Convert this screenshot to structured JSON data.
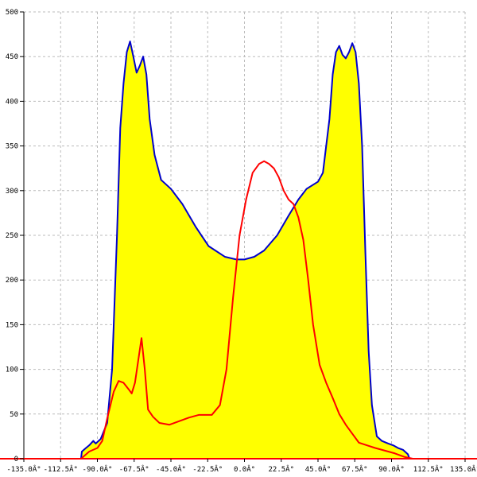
{
  "chart_data": {
    "type": "area",
    "title": "",
    "xlabel": "",
    "ylabel": "",
    "xlim": [
      -135,
      135
    ],
    "ylim": [
      0,
      500
    ],
    "grid": true,
    "legend": "none",
    "x_tick_labels": [
      "-135.0Â°",
      "-112.5Â°",
      "-90.0Â°",
      "-67.5Â°",
      "-45.0Â°",
      "-22.5Â°",
      "0.0Â°",
      "22.5Â°",
      "45.0Â°",
      "67.5Â°",
      "90.0Â°",
      "112.5Â°",
      "135.0Â°"
    ],
    "x_tick_values": [
      -135,
      -112.5,
      -90,
      -67.5,
      -45,
      -22.5,
      0,
      22.5,
      45,
      67.5,
      90,
      112.5,
      135
    ],
    "y_tick_values": [
      0,
      50,
      100,
      150,
      200,
      250,
      300,
      350,
      400,
      450,
      500
    ],
    "y_tick_labels": [
      "0",
      "50",
      "100",
      "150",
      "200",
      "250",
      "300",
      "350",
      "400",
      "450",
      "500"
    ],
    "series": [
      {
        "kind": "area",
        "color": "#0000cc",
        "fill": "#ffff00",
        "points": [
          [
            -100,
            0
          ],
          [
            -99.5,
            8
          ],
          [
            -97,
            12
          ],
          [
            -95,
            15
          ],
          [
            -92.5,
            20
          ],
          [
            -91,
            17
          ],
          [
            -88,
            22
          ],
          [
            -84,
            40
          ],
          [
            -81,
            100
          ],
          [
            -78,
            250
          ],
          [
            -76,
            370
          ],
          [
            -74,
            420
          ],
          [
            -72,
            455
          ],
          [
            -70,
            467
          ],
          [
            -68,
            450
          ],
          [
            -66,
            432
          ],
          [
            -64,
            440
          ],
          [
            -62,
            450
          ],
          [
            -60,
            430
          ],
          [
            -58,
            380
          ],
          [
            -55,
            340
          ],
          [
            -51,
            312
          ],
          [
            -45,
            302
          ],
          [
            -38,
            285
          ],
          [
            -30,
            260
          ],
          [
            -22,
            238
          ],
          [
            -12,
            226
          ],
          [
            -5,
            223
          ],
          [
            0,
            223
          ],
          [
            6,
            226
          ],
          [
            12,
            233
          ],
          [
            20,
            250
          ],
          [
            27,
            272
          ],
          [
            33,
            290
          ],
          [
            38,
            302
          ],
          [
            45,
            310
          ],
          [
            48,
            320
          ],
          [
            52,
            380
          ],
          [
            54,
            430
          ],
          [
            56,
            455
          ],
          [
            58,
            462
          ],
          [
            60,
            452
          ],
          [
            62,
            448
          ],
          [
            64,
            455
          ],
          [
            66,
            465
          ],
          [
            68,
            455
          ],
          [
            70,
            420
          ],
          [
            72,
            350
          ],
          [
            74,
            230
          ],
          [
            76,
            120
          ],
          [
            78,
            60
          ],
          [
            81,
            25
          ],
          [
            84,
            20
          ],
          [
            88,
            17
          ],
          [
            91,
            15
          ],
          [
            94,
            12
          ],
          [
            97,
            10
          ],
          [
            100,
            5
          ],
          [
            101,
            0
          ]
        ]
      },
      {
        "kind": "line",
        "color": "#ff0000",
        "points": [
          [
            -100,
            0
          ],
          [
            -95,
            8
          ],
          [
            -90,
            12
          ],
          [
            -87,
            20
          ],
          [
            -84,
            45
          ],
          [
            -80,
            75
          ],
          [
            -77,
            87
          ],
          [
            -74,
            85
          ],
          [
            -71,
            78
          ],
          [
            -69,
            73
          ],
          [
            -67,
            85
          ],
          [
            -65,
            110
          ],
          [
            -63,
            135
          ],
          [
            -61,
            100
          ],
          [
            -59,
            55
          ],
          [
            -56,
            47
          ],
          [
            -52,
            40
          ],
          [
            -46,
            38
          ],
          [
            -40,
            42
          ],
          [
            -34,
            46
          ],
          [
            -28,
            49
          ],
          [
            -20,
            49
          ],
          [
            -15,
            60
          ],
          [
            -11,
            100
          ],
          [
            -7,
            180
          ],
          [
            -3,
            250
          ],
          [
            1,
            290
          ],
          [
            5,
            320
          ],
          [
            9,
            330
          ],
          [
            12,
            333
          ],
          [
            15,
            330
          ],
          [
            18,
            325
          ],
          [
            21,
            315
          ],
          [
            24,
            300
          ],
          [
            27,
            290
          ],
          [
            30,
            285
          ],
          [
            33,
            270
          ],
          [
            36,
            245
          ],
          [
            39,
            200
          ],
          [
            42,
            150
          ],
          [
            46,
            105
          ],
          [
            50,
            85
          ],
          [
            54,
            68
          ],
          [
            58,
            50
          ],
          [
            62,
            38
          ],
          [
            66,
            28
          ],
          [
            70,
            18
          ],
          [
            75,
            15
          ],
          [
            80,
            12
          ],
          [
            86,
            9
          ],
          [
            92,
            6
          ],
          [
            98,
            2
          ],
          [
            103,
            0
          ]
        ]
      }
    ]
  }
}
